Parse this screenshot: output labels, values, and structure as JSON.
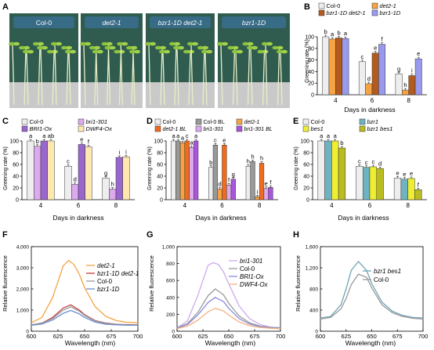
{
  "palette": {
    "col0": "#eeeeee",
    "det2": "#f5a343",
    "det2BL": "#f26a1b",
    "bzr1_1D_det2": "#b35a1e",
    "bzr1_1D": "#9999ee",
    "bri1_301": "#ddaaee",
    "bri1_301BL": "#aa55dd",
    "BRI1Ox": "#9966cc",
    "DWF4Ox": "#ffe8b0",
    "col0BL": "#999999",
    "bzr1": "#6fb3c2",
    "bes1": "#eeee33",
    "bzr1bes1": "#bbbb22",
    "photo_bg": "#2f5c4f",
    "photo_label_bg": "#3a6d8f",
    "lineCol0": "#999999",
    "line_det2": "#f5a343",
    "line_bzr1_1D_det2": "#c23d3d",
    "line_bzr1_1D": "#6a8fd0",
    "line_bri1_301": "#ccaaee",
    "line_BRI1Ox": "#8a8ad8",
    "line_DWF4Ox": "#f5b080",
    "line_bzr1bes1": "#6fa3b8"
  },
  "panels": {
    "A": {
      "letter": "A",
      "photos": [
        {
          "label": "Col-0"
        },
        {
          "label": "det2-1"
        },
        {
          "label": "bzr1-1D det2-1"
        },
        {
          "label": "bzr1-1D"
        }
      ]
    },
    "B": {
      "letter": "B",
      "ylabel": "Greening rate (%)",
      "xlabel": "Days in darkness"
    },
    "C": {
      "letter": "C",
      "ylabel": "Greening rate (%)",
      "xlabel": "Days in darkness"
    },
    "D": {
      "letter": "D",
      "ylabel": "Greening rate (%)",
      "xlabel": "Days in darkness"
    },
    "E": {
      "letter": "E",
      "ylabel": "Greening rate (%)",
      "xlabel": "Days in darkness"
    },
    "F": {
      "letter": "F",
      "ylabel": "Relative fluorescence",
      "xlabel": "Wavelength (nm)"
    },
    "G": {
      "letter": "G",
      "ylabel": "Relative fluorescence",
      "xlabel": "Wavelength (nm)"
    },
    "H": {
      "letter": "H",
      "ylabel": "Relative fluorescence",
      "xlabel": "Wavelength (nm)"
    }
  },
  "chart_data": [
    {
      "panel": "B",
      "type": "bar",
      "categories": [
        "4",
        "6",
        "8"
      ],
      "ylim": [
        0,
        100
      ],
      "yticks": [
        0,
        20,
        40,
        60,
        80,
        100
      ],
      "legend": "top",
      "series": [
        {
          "name": "Col-0",
          "color": "col0",
          "values": [
            100,
            57,
            36
          ],
          "letters": [
            "b",
            "c",
            "g"
          ]
        },
        {
          "name": "det2-1",
          "color": "det2",
          "values": [
            96,
            19,
            8
          ],
          "letters": [
            "a",
            "d",
            "h"
          ]
        },
        {
          "name": "bzr1-1D det2-1",
          "color": "bzr1_1D_det2",
          "values": [
            98,
            72,
            33
          ],
          "letters": [
            "b",
            "e",
            "i"
          ]
        },
        {
          "name": "bzr1-1D",
          "color": "bzr1_1D",
          "values": [
            97,
            87,
            62
          ],
          "letters": [
            "a",
            "f",
            "e"
          ]
        }
      ]
    },
    {
      "panel": "C",
      "type": "bar",
      "categories": [
        "4",
        "6",
        "8"
      ],
      "ylim": [
        0,
        100
      ],
      "yticks": [
        0,
        20,
        40,
        60,
        80,
        100
      ],
      "legend": "top",
      "series": [
        {
          "name": "Col-0",
          "color": "col0",
          "values": [
            100,
            57,
            37
          ],
          "letters": [
            "a",
            "c",
            "g"
          ]
        },
        {
          "name": "bri1-301",
          "color": "bri1_301",
          "values": [
            91,
            26,
            18
          ],
          "letters": [
            "b",
            "d",
            "h"
          ]
        },
        {
          "name": "BRI1-Ox",
          "color": "BRI1Ox",
          "values": [
            100,
            94,
            72
          ],
          "letters": [
            "a",
            "e",
            "i"
          ]
        },
        {
          "name": "DWF4-Ox",
          "color": "DWF4Ox",
          "values": [
            100,
            90,
            73
          ],
          "letters": [
            "ab",
            "f",
            "i"
          ]
        }
      ]
    },
    {
      "panel": "D",
      "type": "bar",
      "categories": [
        "4",
        "6",
        "8"
      ],
      "ylim": [
        0,
        100
      ],
      "yticks": [
        0,
        20,
        40,
        60,
        80,
        100
      ],
      "legend": "top",
      "series": [
        {
          "name": "Col-0",
          "color": "col0",
          "values": [
            100,
            55,
            57
          ],
          "letters": [
            "a",
            "b",
            "h"
          ]
        },
        {
          "name": "Col-0 BL",
          "color": "col0BL",
          "values": [
            100,
            93,
            65
          ],
          "letters": [
            "a",
            "c",
            "h"
          ]
        },
        {
          "name": "det2-1",
          "color": "det2",
          "values": [
            97,
            18,
            5
          ],
          "letters": [
            "a",
            "d",
            "i"
          ]
        },
        {
          "name": "det2-1 BL",
          "color": "det2BL",
          "values": [
            100,
            93,
            62
          ],
          "letters": [
            "c",
            "e",
            "h"
          ]
        },
        {
          "name": "bri1-301",
          "color": "bri1_301",
          "values": [
            89,
            25,
            19
          ],
          "letters": [
            "a",
            "f",
            "e"
          ]
        },
        {
          "name": "bri1-301 BL",
          "color": "bri1_301BL",
          "values": [
            100,
            35,
            21
          ],
          "letters": [
            "a",
            "g",
            "f"
          ]
        }
      ]
    },
    {
      "panel": "E",
      "type": "bar",
      "categories": [
        "4",
        "6",
        "8"
      ],
      "ylim": [
        0,
        100
      ],
      "yticks": [
        0,
        20,
        40,
        60,
        80,
        100
      ],
      "legend": "top",
      "series": [
        {
          "name": "Col-0",
          "color": "col0",
          "values": [
            100,
            57,
            37
          ],
          "letters": [
            "a",
            "c",
            "e"
          ]
        },
        {
          "name": "bzr1",
          "color": "bzr1",
          "values": [
            100,
            55,
            35
          ],
          "letters": [
            "a",
            "c",
            "e"
          ]
        },
        {
          "name": "bes1",
          "color": "bes1",
          "values": [
            100,
            56,
            36
          ],
          "letters": [
            "a",
            "c",
            "e"
          ]
        },
        {
          "name": "bzr1 bes1",
          "color": "bzr1bes1",
          "values": [
            88,
            53,
            17
          ],
          "letters": [
            "b",
            "d",
            "f"
          ]
        }
      ]
    },
    {
      "panel": "F",
      "type": "line",
      "xlim": [
        600,
        700
      ],
      "xticks": [
        600,
        625,
        650,
        675,
        700
      ],
      "ylim": [
        0,
        4000
      ],
      "yticks": [
        0,
        1000,
        2000,
        3000,
        4000
      ],
      "legend": "top-right",
      "series": [
        {
          "name": "det2-1",
          "color": "line_det2",
          "x": [
            600,
            610,
            620,
            630,
            635,
            640,
            645,
            650,
            660,
            670,
            680,
            690,
            700
          ],
          "y": [
            400,
            650,
            1600,
            3100,
            3350,
            3150,
            2700,
            2050,
            1150,
            700,
            500,
            420,
            400
          ]
        },
        {
          "name": "bzr1-1D det2-1",
          "color": "line_bzr1_1D_det2",
          "x": [
            600,
            610,
            620,
            630,
            637,
            645,
            650,
            660,
            670,
            680,
            690,
            700
          ],
          "y": [
            300,
            380,
            650,
            1100,
            1250,
            1000,
            780,
            500,
            380,
            330,
            310,
            300
          ]
        },
        {
          "name": "Col-0",
          "color": "lineCol0",
          "x": [
            600,
            610,
            620,
            630,
            637,
            645,
            650,
            660,
            670,
            680,
            690,
            700
          ],
          "y": [
            300,
            370,
            600,
            1000,
            1150,
            950,
            750,
            480,
            360,
            320,
            300,
            290
          ]
        },
        {
          "name": "bzr1-1D",
          "color": "line_bzr1_1D",
          "x": [
            600,
            610,
            620,
            630,
            637,
            645,
            650,
            660,
            670,
            680,
            690,
            700
          ],
          "y": [
            280,
            340,
            530,
            850,
            980,
            820,
            650,
            430,
            330,
            300,
            285,
            280
          ]
        }
      ]
    },
    {
      "panel": "G",
      "type": "line",
      "xlim": [
        600,
        700
      ],
      "xticks": [
        600,
        625,
        650,
        675,
        700
      ],
      "ylim": [
        0,
        1000
      ],
      "yticks": [
        0,
        200,
        400,
        600,
        800,
        1000
      ],
      "legend": "top-right",
      "series": [
        {
          "name": "bri1-301",
          "color": "line_bri1_301",
          "x": [
            600,
            610,
            620,
            630,
            635,
            640,
            645,
            650,
            660,
            670,
            680,
            690,
            700
          ],
          "y": [
            40,
            120,
            420,
            780,
            810,
            790,
            700,
            560,
            300,
            150,
            80,
            50,
            40
          ]
        },
        {
          "name": "Col-0",
          "color": "lineCol0",
          "x": [
            600,
            610,
            620,
            630,
            637,
            645,
            650,
            660,
            670,
            680,
            690,
            700
          ],
          "y": [
            40,
            90,
            220,
            420,
            500,
            430,
            330,
            180,
            100,
            60,
            45,
            40
          ]
        },
        {
          "name": "BRI1-Ox",
          "color": "line_BRI1Ox",
          "x": [
            600,
            610,
            620,
            630,
            637,
            645,
            650,
            660,
            670,
            680,
            690,
            700
          ],
          "y": [
            35,
            80,
            190,
            340,
            400,
            350,
            270,
            150,
            85,
            55,
            40,
            35
          ]
        },
        {
          "name": "DWF4-Ox",
          "color": "line_DWF4Ox",
          "x": [
            600,
            610,
            620,
            630,
            637,
            645,
            650,
            660,
            670,
            680,
            690,
            700
          ],
          "y": [
            30,
            60,
            130,
            230,
            270,
            240,
            190,
            110,
            65,
            45,
            35,
            30
          ]
        }
      ]
    },
    {
      "panel": "H",
      "type": "line",
      "xlim": [
        600,
        700
      ],
      "xticks": [
        600,
        625,
        650,
        675,
        700
      ],
      "ylim": [
        0,
        1600
      ],
      "yticks": [
        0,
        400,
        800,
        1200,
        1600
      ],
      "legend": "top-right",
      "series": [
        {
          "name": "bzr1 bes1",
          "color": "line_bzr1bes1",
          "x": [
            600,
            610,
            620,
            625,
            630,
            637,
            645,
            650,
            660,
            670,
            680,
            690,
            700
          ],
          "y": [
            250,
            280,
            500,
            800,
            1150,
            1320,
            1150,
            900,
            550,
            380,
            300,
            260,
            250
          ]
        },
        {
          "name": "Col-0",
          "color": "lineCol0",
          "x": [
            600,
            610,
            620,
            625,
            630,
            637,
            645,
            650,
            660,
            670,
            680,
            690,
            700
          ],
          "y": [
            230,
            260,
            420,
            620,
            880,
            1080,
            1020,
            820,
            500,
            350,
            280,
            245,
            230
          ]
        }
      ]
    }
  ]
}
